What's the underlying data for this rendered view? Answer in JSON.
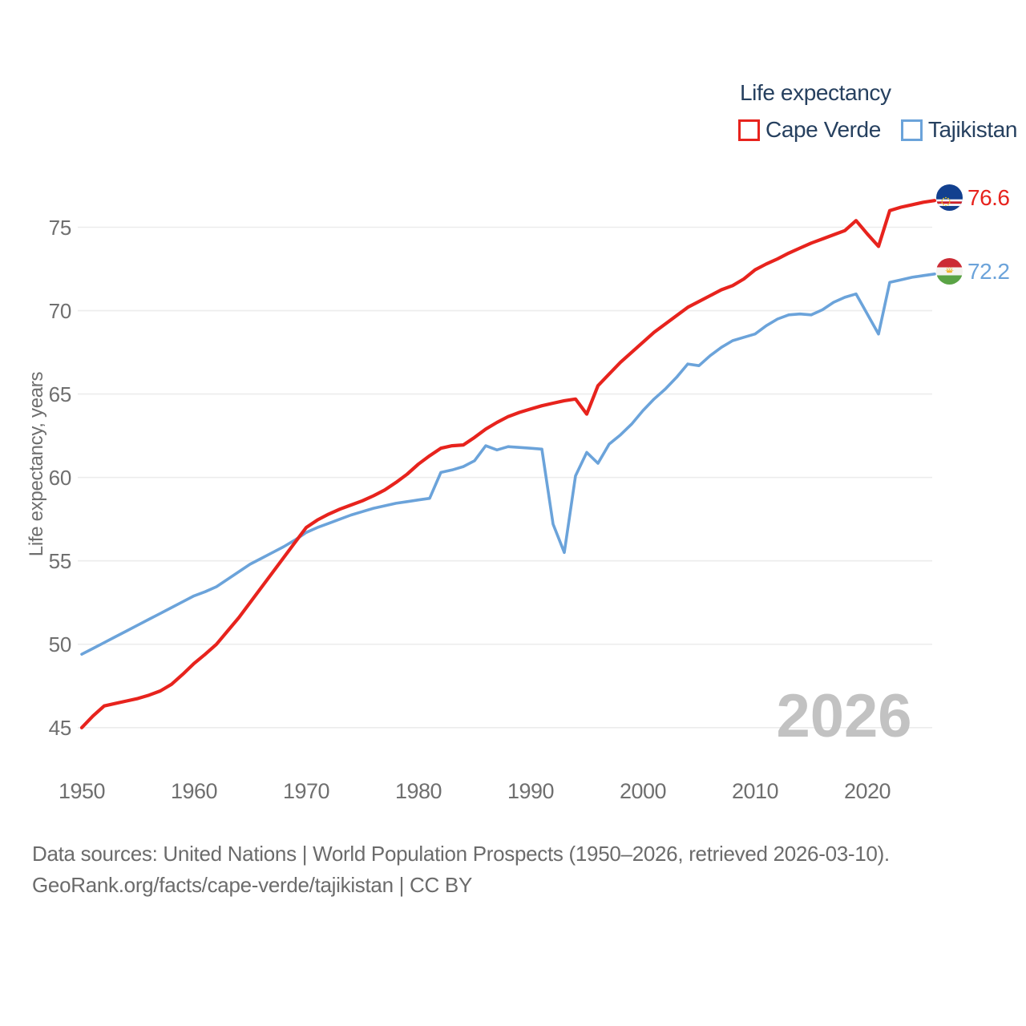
{
  "legend": {
    "title": "Life expectancy",
    "items": [
      {
        "label": "Cape Verde",
        "color": "#e7231d"
      },
      {
        "label": "Tajikistan",
        "color": "#6ba3da"
      }
    ]
  },
  "y_axis": {
    "title": "Life expectancy, years",
    "tick_values": [
      45,
      50,
      55,
      60,
      65,
      70,
      75
    ]
  },
  "x_axis": {
    "tick_values": [
      1950,
      1960,
      1970,
      1980,
      1990,
      2000,
      2010,
      2020
    ]
  },
  "end_labels": [
    {
      "value": "76.6",
      "series": "Cape Verde",
      "flag_icon": "cape-verde-flag",
      "color": "#e7231d"
    },
    {
      "value": "72.2",
      "series": "Tajikistan",
      "flag_icon": "tajikistan-flag",
      "color": "#6ba3da"
    }
  ],
  "watermark": "2026",
  "footer": {
    "line1": "Data sources: United Nations | World Population Prospects (1950–2026, retrieved 2026-03-10).",
    "line2": "GeoRank.org/facts/cape-verde/tajikistan | CC BY"
  },
  "chart_data": {
    "type": "line",
    "title": "Life expectancy",
    "ylabel": "Life expectancy, years",
    "xlim": [
      1950,
      2026
    ],
    "ylim": [
      45,
      75
    ],
    "grid": "horizontal",
    "legend_position": "top-right",
    "x": [
      1950,
      1951,
      1952,
      1953,
      1954,
      1955,
      1956,
      1957,
      1958,
      1959,
      1960,
      1961,
      1962,
      1963,
      1964,
      1965,
      1966,
      1967,
      1968,
      1969,
      1970,
      1971,
      1972,
      1973,
      1974,
      1975,
      1976,
      1977,
      1978,
      1979,
      1980,
      1981,
      1982,
      1983,
      1984,
      1985,
      1986,
      1987,
      1988,
      1989,
      1990,
      1991,
      1992,
      1993,
      1994,
      1995,
      1996,
      1997,
      1998,
      1999,
      2000,
      2001,
      2002,
      2003,
      2004,
      2005,
      2006,
      2007,
      2008,
      2009,
      2010,
      2011,
      2012,
      2013,
      2014,
      2015,
      2016,
      2017,
      2018,
      2019,
      2020,
      2021,
      2022,
      2023,
      2024,
      2025,
      2026
    ],
    "series": [
      {
        "name": "Cape Verde",
        "color": "#e7231d",
        "end_value": 76.6,
        "values": [
          45.0,
          45.7,
          46.3,
          46.45,
          46.6,
          46.75,
          46.95,
          47.2,
          47.6,
          48.2,
          48.85,
          49.4,
          50.0,
          50.8,
          51.6,
          52.5,
          53.4,
          54.3,
          55.2,
          56.1,
          57.0,
          57.45,
          57.8,
          58.1,
          58.35,
          58.6,
          58.9,
          59.25,
          59.7,
          60.2,
          60.8,
          61.3,
          61.75,
          61.9,
          61.95,
          62.4,
          62.9,
          63.3,
          63.65,
          63.9,
          64.1,
          64.3,
          64.45,
          64.6,
          64.7,
          63.8,
          65.5,
          66.2,
          66.9,
          67.5,
          68.1,
          68.7,
          69.2,
          69.7,
          70.2,
          70.55,
          70.9,
          71.25,
          71.5,
          71.9,
          72.45,
          72.8,
          73.1,
          73.45,
          73.75,
          74.05,
          74.3,
          74.55,
          74.8,
          75.4,
          74.6,
          73.85,
          76.0,
          76.2,
          76.35,
          76.5,
          76.6
        ]
      },
      {
        "name": "Tajikistan",
        "color": "#6ba3da",
        "end_value": 72.2,
        "values": [
          49.4,
          49.75,
          50.1,
          50.45,
          50.8,
          51.15,
          51.5,
          51.85,
          52.2,
          52.55,
          52.9,
          53.15,
          53.45,
          53.9,
          54.35,
          54.8,
          55.15,
          55.5,
          55.85,
          56.25,
          56.7,
          57.0,
          57.25,
          57.5,
          57.75,
          57.95,
          58.15,
          58.3,
          58.45,
          58.55,
          58.65,
          58.75,
          60.3,
          60.45,
          60.65,
          61.0,
          61.9,
          61.65,
          61.85,
          61.8,
          61.75,
          61.7,
          57.2,
          55.5,
          60.1,
          61.5,
          60.85,
          62.0,
          62.55,
          63.2,
          64.0,
          64.7,
          65.3,
          66.0,
          66.8,
          66.7,
          67.3,
          67.8,
          68.2,
          68.4,
          68.6,
          69.1,
          69.5,
          69.75,
          69.8,
          69.75,
          70.05,
          70.5,
          70.8,
          71.0,
          69.8,
          68.6,
          71.7,
          71.85,
          72.0,
          72.1,
          72.2
        ]
      }
    ]
  }
}
